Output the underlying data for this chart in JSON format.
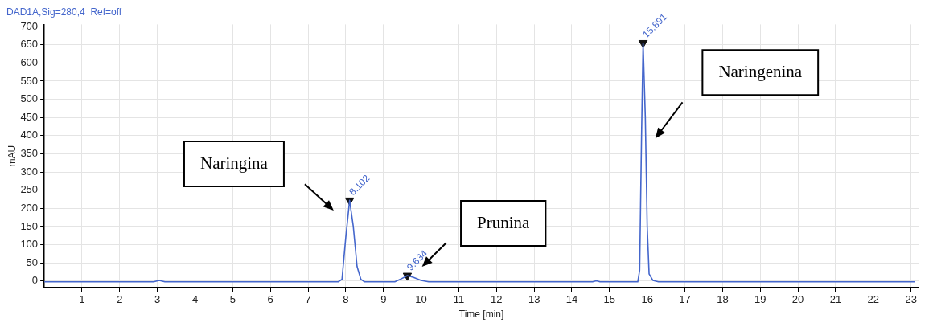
{
  "chart_data": {
    "type": "line",
    "title": "DAD1A,Sig=280,4  Ref=off",
    "xlabel": "Time [min]",
    "ylabel": "mAU",
    "xlim": [
      0,
      23.2
    ],
    "xticks": [
      1,
      2,
      3,
      4,
      5,
      6,
      7,
      8,
      9,
      10,
      11,
      12,
      13,
      14,
      15,
      16,
      17,
      18,
      19,
      20,
      21,
      22,
      23
    ],
    "ylim": [
      -18,
      706
    ],
    "yticks": [
      0,
      50,
      100,
      150,
      200,
      250,
      300,
      350,
      400,
      450,
      500,
      550,
      600,
      650,
      700
    ],
    "grid": true,
    "legend": false,
    "line_style": "solid",
    "series": [
      {
        "color": "#4466cc",
        "marker": "none",
        "x": [
          0,
          2.9,
          3.05,
          3.2,
          7.8,
          7.9,
          8.0,
          8.102,
          8.2,
          8.3,
          8.4,
          8.5,
          9.3,
          9.45,
          9.634,
          9.8,
          10.0,
          10.2,
          14.55,
          14.65,
          14.75,
          15.75,
          15.8,
          15.85,
          15.891,
          15.95,
          16.0,
          16.05,
          16.15,
          16.3,
          23.1
        ],
        "values": [
          -2,
          -2,
          2,
          -2,
          -2,
          5,
          120,
          222,
          150,
          40,
          5,
          -2,
          -2,
          5,
          15,
          10,
          2,
          -2,
          -2,
          1,
          -2,
          -2,
          30,
          400,
          655,
          450,
          150,
          20,
          2,
          -2,
          -2
        ]
      },
      {
        "type": "scatter",
        "color": "#111111",
        "marker": "triangle",
        "x": [
          8.102,
          9.634,
          15.891
        ],
        "values": [
          222,
          15,
          655
        ]
      }
    ],
    "annotations": [
      "Naringina",
      "Prunina",
      "Naringenina",
      {
        "text": "8.102",
        "x": 8.102,
        "y": 222
      },
      {
        "text": "9.634",
        "x": 9.634,
        "y": 15
      },
      {
        "text": "15.891",
        "x": 15.891,
        "y": 655
      }
    ]
  }
}
